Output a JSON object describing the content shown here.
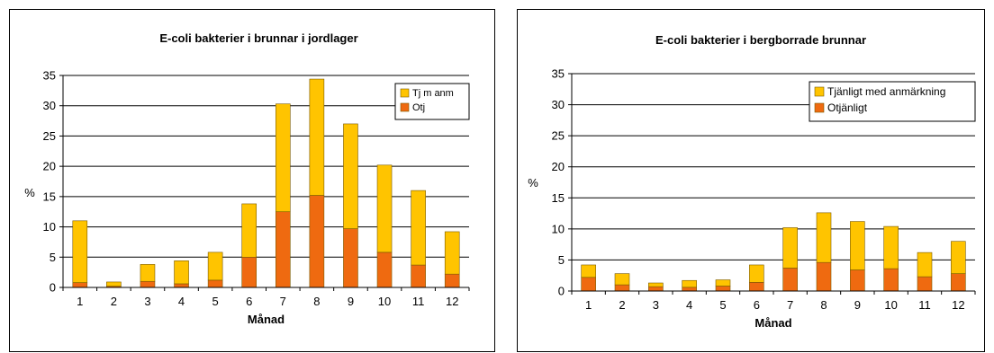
{
  "chart_data": [
    {
      "type": "bar",
      "stacked": true,
      "title": "E-coli bakterier i brunnar i jordlager",
      "xlabel": "Månad",
      "ylabel": "%",
      "ylim": [
        0,
        35
      ],
      "yticks": [
        0,
        5,
        10,
        15,
        20,
        25,
        30,
        35
      ],
      "grid": true,
      "legend_position": "top-right",
      "categories": [
        "1",
        "2",
        "3",
        "4",
        "5",
        "6",
        "7",
        "8",
        "9",
        "10",
        "11",
        "12"
      ],
      "series": [
        {
          "name": "Otj",
          "color": "#ef6a10",
          "values": [
            0.8,
            0.2,
            1.0,
            0.6,
            1.2,
            5.0,
            12.5,
            15.2,
            9.7,
            5.8,
            3.7,
            2.2
          ]
        },
        {
          "name": "Tj m anm",
          "color": "#ffc400",
          "values": [
            10.2,
            0.7,
            2.8,
            3.8,
            4.6,
            8.8,
            17.8,
            19.2,
            17.3,
            14.4,
            12.3,
            7.0
          ]
        }
      ]
    },
    {
      "type": "bar",
      "stacked": true,
      "title": "E-coli bakterier i bergborrade brunnar",
      "xlabel": "Månad",
      "ylabel": "%",
      "ylim": [
        0,
        35
      ],
      "yticks": [
        0,
        5,
        10,
        15,
        20,
        25,
        30,
        35
      ],
      "grid": true,
      "legend_position": "top-right",
      "categories": [
        "1",
        "2",
        "3",
        "4",
        "5",
        "6",
        "7",
        "8",
        "9",
        "10",
        "11",
        "12"
      ],
      "series": [
        {
          "name": "Otjänligt",
          "color": "#ef6a10",
          "values": [
            2.2,
            1.0,
            0.7,
            0.6,
            0.8,
            1.4,
            3.7,
            4.6,
            3.4,
            3.6,
            2.3,
            2.8
          ]
        },
        {
          "name": "Tjänligt med anmärkning",
          "color": "#ffc400",
          "values": [
            2.0,
            1.8,
            0.6,
            1.1,
            1.0,
            2.8,
            6.5,
            8.0,
            7.8,
            6.8,
            3.9,
            5.2
          ]
        }
      ]
    }
  ]
}
